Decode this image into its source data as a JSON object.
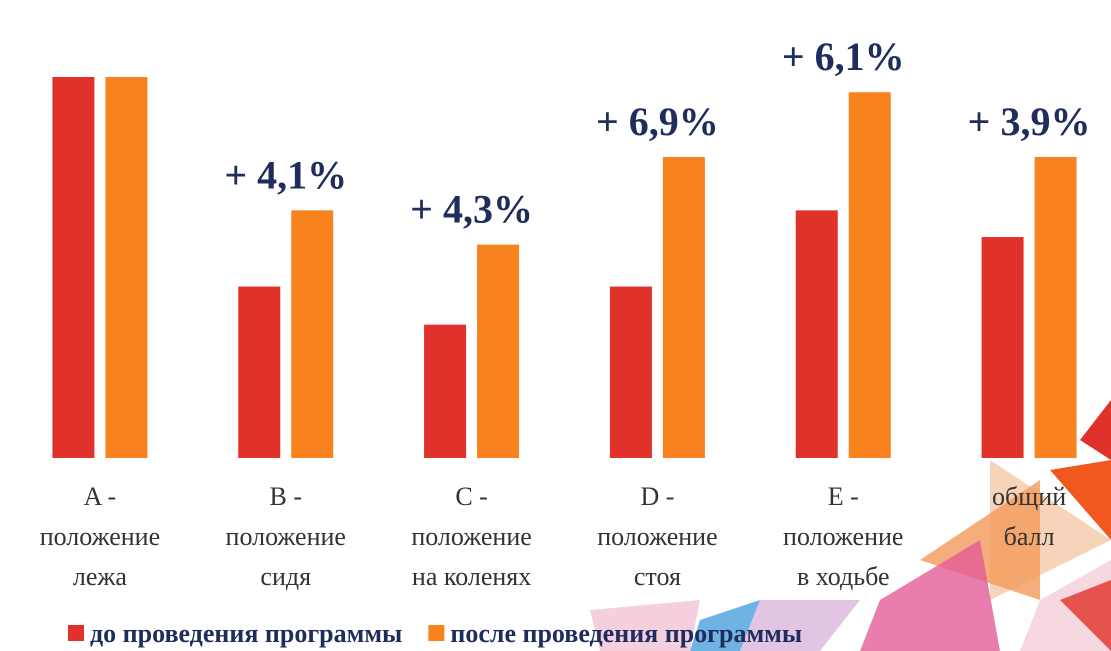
{
  "chart_data": {
    "type": "bar",
    "categories": [
      "A -\nположение\nлежа",
      "B -\nположение\nсидя",
      "C -\nположение\nна коленях",
      "D -\nположение\nстоя",
      "E -\nположение\nв ходьбе",
      "общий\nбалл"
    ],
    "series": [
      {
        "name": "до проведения программы",
        "color": "#e0322a",
        "values": [
          100,
          45,
          35,
          45,
          65,
          58
        ]
      },
      {
        "name": "после проведения программы",
        "color": "#f7821e",
        "values": [
          100,
          65,
          56,
          79,
          96,
          79
        ]
      }
    ],
    "annotations": [
      null,
      "+ 4,1%",
      "+ 4,3%",
      "+ 6,9%",
      "+ 6,1%",
      "+ 3,9%"
    ],
    "ylim": [
      0,
      100
    ]
  }
}
